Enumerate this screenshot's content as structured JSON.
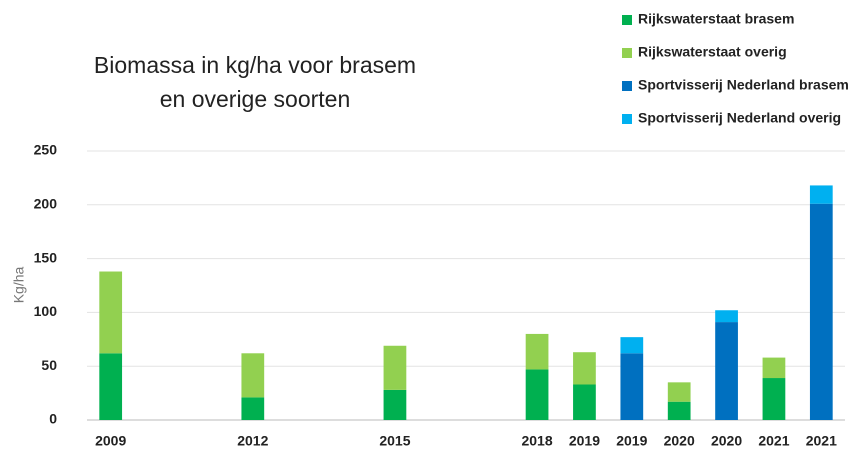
{
  "chart_data": {
    "type": "stacked_bar",
    "title": "Biomassa in kg/ha voor brasem en overige soorten",
    "y_label": "Kg/ha",
    "categories": [
      "2009",
      null,
      null,
      "2012",
      null,
      null,
      "2015",
      null,
      null,
      "2018",
      "2019",
      "2019",
      "2020",
      "2020",
      "2021",
      "2021"
    ],
    "series": [
      {
        "name": "Rijkswaterstaat brasem",
        "color": "#00b050",
        "values": [
          62,
          null,
          null,
          21,
          null,
          null,
          28,
          null,
          null,
          47,
          33,
          null,
          17,
          null,
          39,
          null
        ]
      },
      {
        "name": "Rijkswaterstaat overig",
        "color": "#92d050",
        "values": [
          76,
          null,
          null,
          41,
          null,
          null,
          41,
          null,
          null,
          33,
          30,
          null,
          18,
          null,
          19,
          null
        ]
      },
      {
        "name": "Sportvisserij Nederland brasem",
        "color": "#0070c0",
        "values": [
          null,
          null,
          null,
          null,
          null,
          null,
          null,
          null,
          null,
          null,
          null,
          62,
          null,
          91,
          null,
          201
        ]
      },
      {
        "name": "Sportvisserij Nederland overig",
        "color": "#00b0f0",
        "values": [
          null,
          null,
          null,
          null,
          null,
          null,
          null,
          null,
          null,
          null,
          null,
          15,
          null,
          11,
          null,
          17
        ]
      }
    ],
    "ylim": [
      0,
      250
    ],
    "yticks": [
      0,
      50,
      100,
      150,
      200,
      250
    ],
    "grid": true,
    "legend": "top-right"
  }
}
